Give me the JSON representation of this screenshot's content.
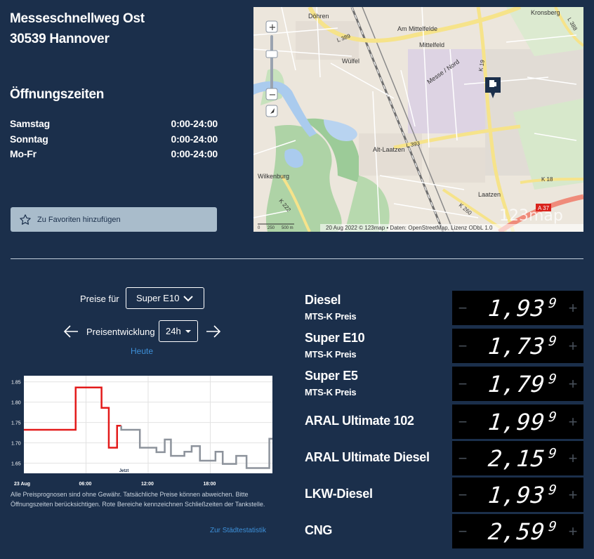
{
  "address": {
    "street": "Messeschnellweg Ost",
    "city": "30539 Hannover"
  },
  "hours": {
    "title": "Öffnungszeiten",
    "rows": [
      {
        "day": "Samstag",
        "time": "0:00-24:00"
      },
      {
        "day": "Sonntag",
        "time": "0:00-24:00"
      },
      {
        "day": "Mo-Fr",
        "time": "0:00-24:00"
      }
    ]
  },
  "favorite_label": "Zu Favoriten hinzufügen",
  "map": {
    "labels": [
      "Döhren",
      "Am Mittelfelde",
      "Mittelfeld",
      "Kronsberg",
      "Wülfel",
      "Messe / Nord",
      "Alt-Laatzen",
      "Wilkenburg",
      "Laatzen"
    ],
    "roads": [
      "L 389",
      "K 19",
      "L 393",
      "K 222",
      "K 260",
      "K 18",
      "L 388",
      "A 37"
    ],
    "attribution": "20 Aug 2022 © 123map • Daten: OpenStreetMap, Lizenz ODbL 1.0",
    "scale": [
      "0",
      "250",
      "500 m"
    ],
    "brand": "123map",
    "zoom_in": "+",
    "zoom_out": "−"
  },
  "prices_for": {
    "label": "Preise für",
    "selected": "Super E10"
  },
  "price_dev": {
    "label": "Preisentwicklung",
    "range": "24h",
    "today": "Heute"
  },
  "chart_data": {
    "type": "line",
    "y_ticks": [
      "1.85",
      "1.80",
      "1.75",
      "1.70",
      "1.65"
    ],
    "x_ticks": [
      "23 Aug",
      "06:00",
      "12:00",
      "18:00"
    ],
    "now_label": "Jetzt",
    "ylim": [
      1.625,
      1.865
    ],
    "xlim": [
      0,
      24
    ],
    "series": [
      {
        "color": "#e31b1b",
        "points": [
          [
            0,
            1.732
          ],
          [
            5,
            1.732
          ],
          [
            5,
            1.836
          ],
          [
            7.5,
            1.836
          ],
          [
            7.5,
            1.786
          ],
          [
            8.2,
            1.786
          ],
          [
            8.2,
            1.688
          ],
          [
            9,
            1.688
          ],
          [
            9,
            1.742
          ],
          [
            9.4,
            1.742
          ]
        ]
      },
      {
        "color": "#8d939c",
        "points": [
          [
            9.4,
            1.742
          ],
          [
            9.4,
            1.732
          ],
          [
            11.2,
            1.732
          ],
          [
            11.2,
            1.688
          ],
          [
            12.8,
            1.688
          ],
          [
            12.8,
            1.677
          ],
          [
            13.6,
            1.677
          ],
          [
            13.6,
            1.708
          ],
          [
            14.2,
            1.708
          ],
          [
            14.2,
            1.668
          ],
          [
            15.5,
            1.668
          ],
          [
            15.5,
            1.678
          ],
          [
            16.2,
            1.678
          ],
          [
            16.2,
            1.692
          ],
          [
            17,
            1.692
          ],
          [
            17,
            1.656
          ],
          [
            18.5,
            1.656
          ],
          [
            18.5,
            1.678
          ],
          [
            19.2,
            1.678
          ],
          [
            19.2,
            1.648
          ],
          [
            20.5,
            1.648
          ],
          [
            20.5,
            1.668
          ],
          [
            21.5,
            1.668
          ],
          [
            21.5,
            1.638
          ],
          [
            23.7,
            1.638
          ],
          [
            23.7,
            1.71
          ],
          [
            25,
            1.71
          ]
        ]
      }
    ]
  },
  "notes": "Alle Preisprognosen sind ohne Gewähr. Tatsächliche Preise können abweichen. Bitte Öffnungszeiten berücksichtigen. Rote Bereiche kennzeichnen Schließzeiten der Tankstelle.",
  "city_stats": "Zur Städtestatistik",
  "fuels": [
    {
      "name": "Diesel",
      "sub": "MTS-K Preis",
      "price": "1,93",
      "tenth": "9"
    },
    {
      "name": "Super E10",
      "sub": "MTS-K Preis",
      "price": "1,73",
      "tenth": "9"
    },
    {
      "name": "Super E5",
      "sub": "MTS-K Preis",
      "price": "1,79",
      "tenth": "9"
    },
    {
      "name": "ARAL Ultimate 102",
      "sub": "",
      "price": "1,99",
      "tenth": "9"
    },
    {
      "name": "ARAL Ultimate Diesel",
      "sub": "",
      "price": "2,15",
      "tenth": "9"
    },
    {
      "name": "LKW-Diesel",
      "sub": "",
      "price": "1,93",
      "tenth": "9"
    },
    {
      "name": "CNG",
      "sub": "",
      "price": "2,59",
      "tenth": "9"
    }
  ],
  "price_controls": {
    "minus": "−",
    "plus": "+"
  }
}
